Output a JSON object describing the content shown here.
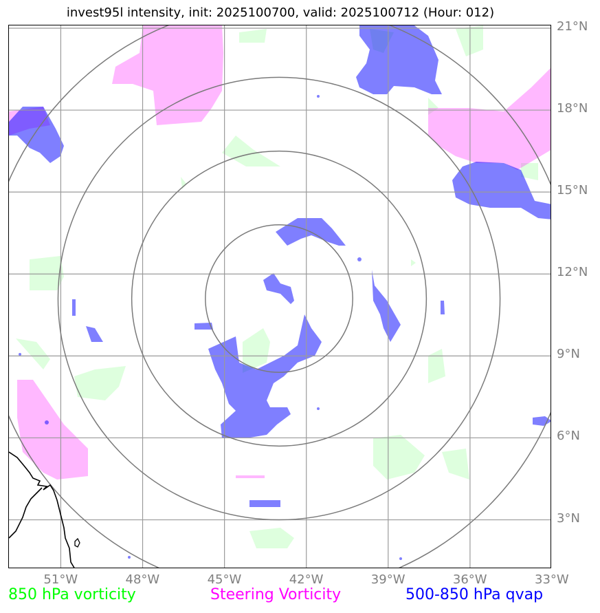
{
  "title": "invest95l intensity, init: 2025100700, valid: 2025100712 (Hour: 012)",
  "axes": {
    "lat_labels": [
      "21°N",
      "18°N",
      "15°N",
      "12°N",
      "9°N",
      "6°N",
      "3°N"
    ],
    "lon_labels": [
      "51°W",
      "48°W",
      "45°W",
      "42°W",
      "39°W",
      "36°W",
      "33°W"
    ],
    "lon_range": [
      -52.9,
      -33.0
    ],
    "lat_range": [
      1.2,
      21.1
    ]
  },
  "storm_center": {
    "lon": -43.0,
    "lat": 11.1
  },
  "range_rings_deg": [
    2.7,
    5.4,
    8.1,
    10.8
  ],
  "legend": {
    "vorticity_850": "850 hPa vorticity",
    "steering_vorticity": "Steering Vorticity",
    "qvap_500_850": "500-850 hPa qvap"
  },
  "colors": {
    "vorticity_850": "#00ff00",
    "steering_vorticity": "#ff00ff",
    "qvap_500_850": "#0000ff",
    "grid": "#9a9a9a",
    "rings": "#7a7a7a"
  }
}
